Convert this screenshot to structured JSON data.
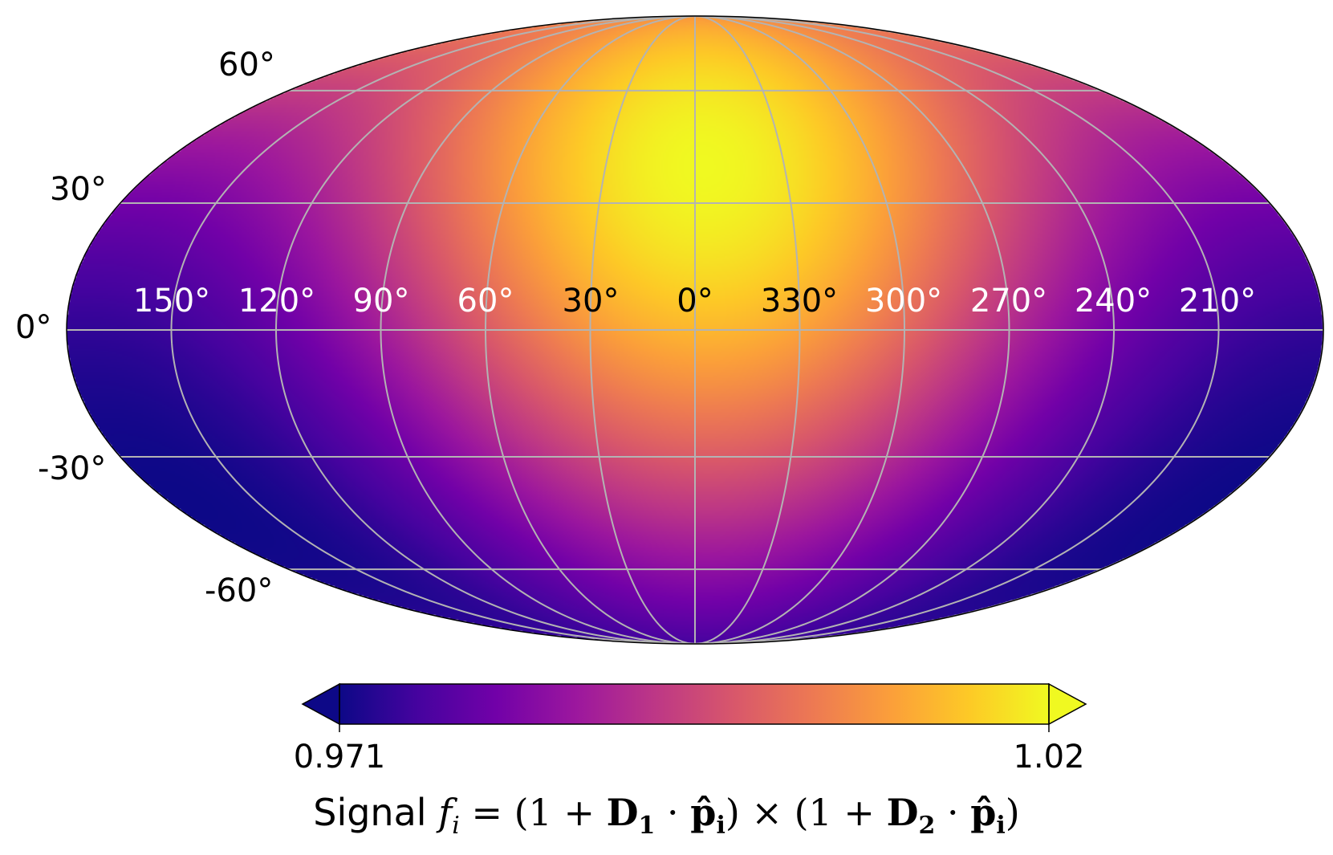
{
  "chart_data": {
    "type": "heatmap",
    "projection": "mollweide",
    "colormap": "plasma",
    "colorbar": {
      "vmin": 0.971,
      "vmax": 1.02,
      "tick_labels": [
        "0.971",
        "1.02"
      ],
      "extend": "both",
      "orientation": "horizontal",
      "label_prefix": "Signal",
      "label_formula": "f_i = (1 + D_1 · p̂_i) × (1 + D_2 · p̂_i)"
    },
    "longitude_ticks": [
      "150°",
      "120°",
      "90°",
      "60°",
      "30°",
      "0°",
      "330°",
      "300°",
      "270°",
      "240°",
      "210°"
    ],
    "latitude_ticks": [
      "60°",
      "30°",
      "0°",
      "-30°",
      "-60°"
    ],
    "grid": true,
    "field_extrema": {
      "max": {
        "lon_deg": 345,
        "lat_deg": 45,
        "value": 1.02
      },
      "min": {
        "lon_deg": 115,
        "lat_deg": -55,
        "value": 0.971
      }
    }
  },
  "colors": {
    "grid": "#b3b3b3",
    "outline": "#000000",
    "colormap_stops": [
      "#0d0887",
      "#46039f",
      "#7201a8",
      "#9c179e",
      "#bd3786",
      "#d8576b",
      "#ed7953",
      "#fb9f3a",
      "#fdca26",
      "#f0f921"
    ]
  }
}
